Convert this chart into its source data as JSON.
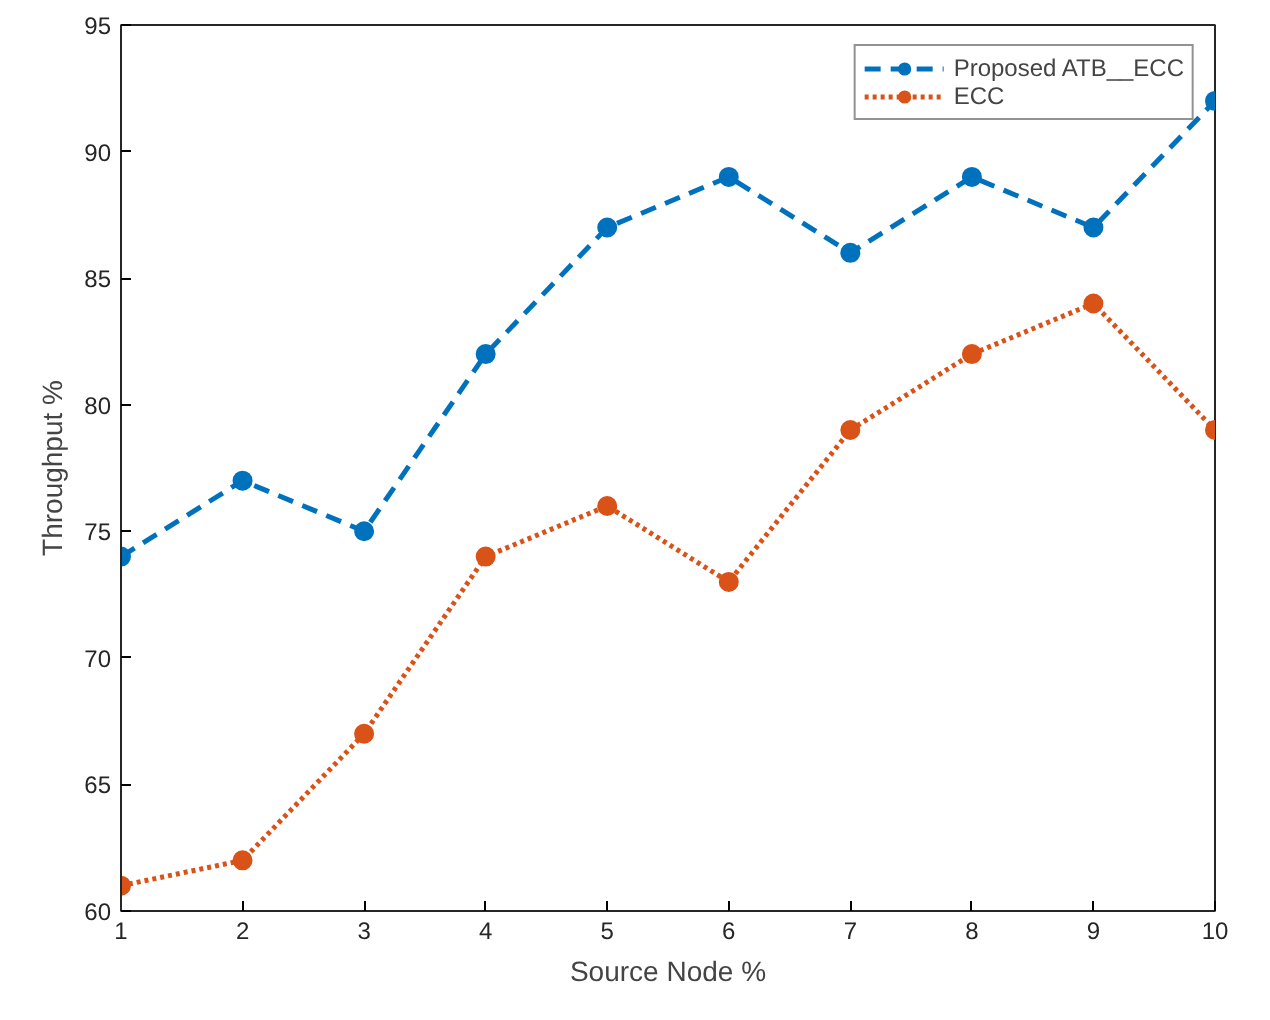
{
  "chart_data": {
    "type": "line",
    "xlabel": "Source Node %",
    "ylabel": "Throughput %",
    "x": [
      1,
      2,
      3,
      4,
      5,
      6,
      7,
      8,
      9,
      10
    ],
    "series": [
      {
        "name": "Proposed ATB__ECC",
        "color": "#0072bd",
        "line_style": "dashed",
        "values": [
          74,
          77,
          75,
          82,
          87,
          89,
          86,
          89,
          87,
          92
        ]
      },
      {
        "name": "ECC",
        "color": "#d95319",
        "line_style": "dotted",
        "values": [
          61,
          62,
          67,
          74,
          76,
          73,
          79,
          82,
          84,
          79
        ]
      }
    ],
    "xlim": [
      1,
      10
    ],
    "xticks": [
      1,
      2,
      3,
      4,
      5,
      6,
      7,
      8,
      9,
      10
    ],
    "ylim": [
      60,
      95
    ],
    "yticks": [
      60,
      65,
      70,
      75,
      80,
      85,
      90,
      95
    ],
    "grid": false,
    "legend": "top right",
    "marker": "circle"
  }
}
